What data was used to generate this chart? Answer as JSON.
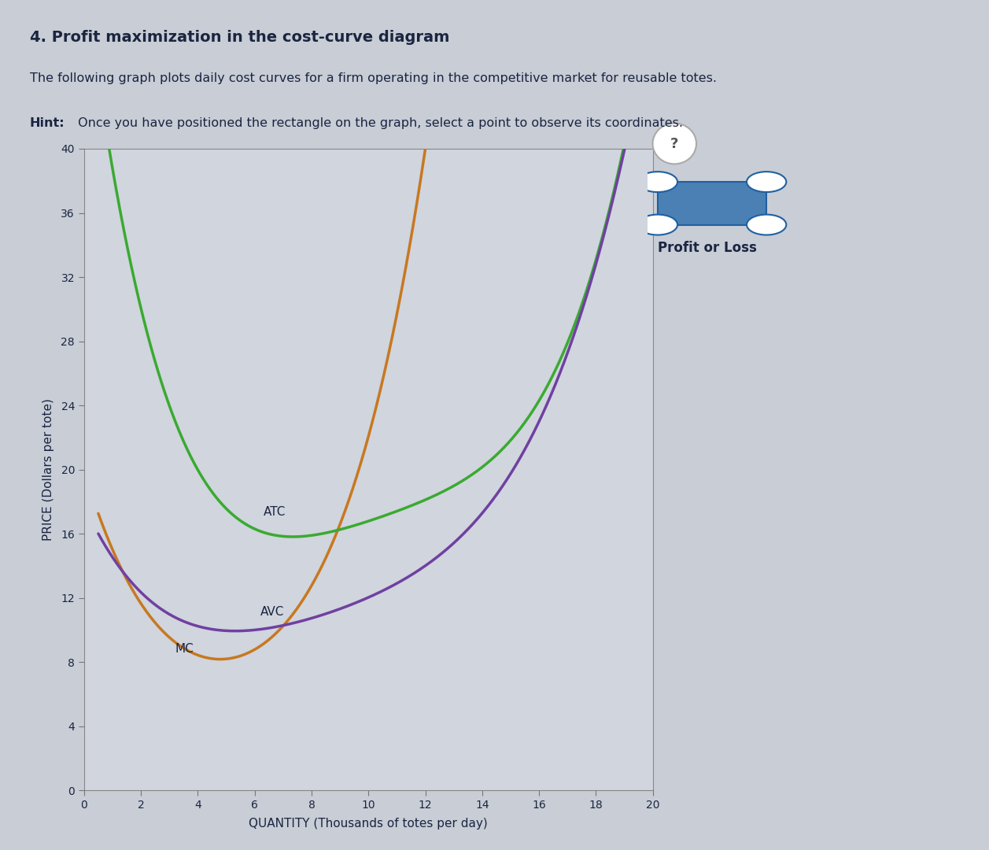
{
  "title": "4. Profit maximization in the cost-curve diagram",
  "subtitle1": "The following graph plots daily cost curves for a firm operating in the competitive market for reusable totes.",
  "hint_bold": "Hint:",
  "hint_rest": " Once you have positioned the rectangle on the graph, select a point to observe its coordinates.",
  "xlabel": "QUANTITY (Thousands of totes per day)",
  "ylabel": "PRICE (Dollars per tote)",
  "xlim": [
    0,
    20
  ],
  "ylim": [
    0,
    40
  ],
  "xticks": [
    0,
    2,
    4,
    6,
    8,
    10,
    12,
    14,
    16,
    18,
    20
  ],
  "yticks": [
    0,
    4,
    8,
    12,
    16,
    20,
    24,
    28,
    32,
    36,
    40
  ],
  "bg_color": "#c8cdd6",
  "plot_bg_color": "#d0d5de",
  "mc_color": "#c87820",
  "atc_color": "#3aaa30",
  "avc_color": "#7040a0",
  "mc_label": "MC",
  "atc_label": "ATC",
  "avc_label": "AVC",
  "legend_label": "Profit or Loss",
  "legend_icon_color": "#4a80b4",
  "text_color": "#1a2540"
}
